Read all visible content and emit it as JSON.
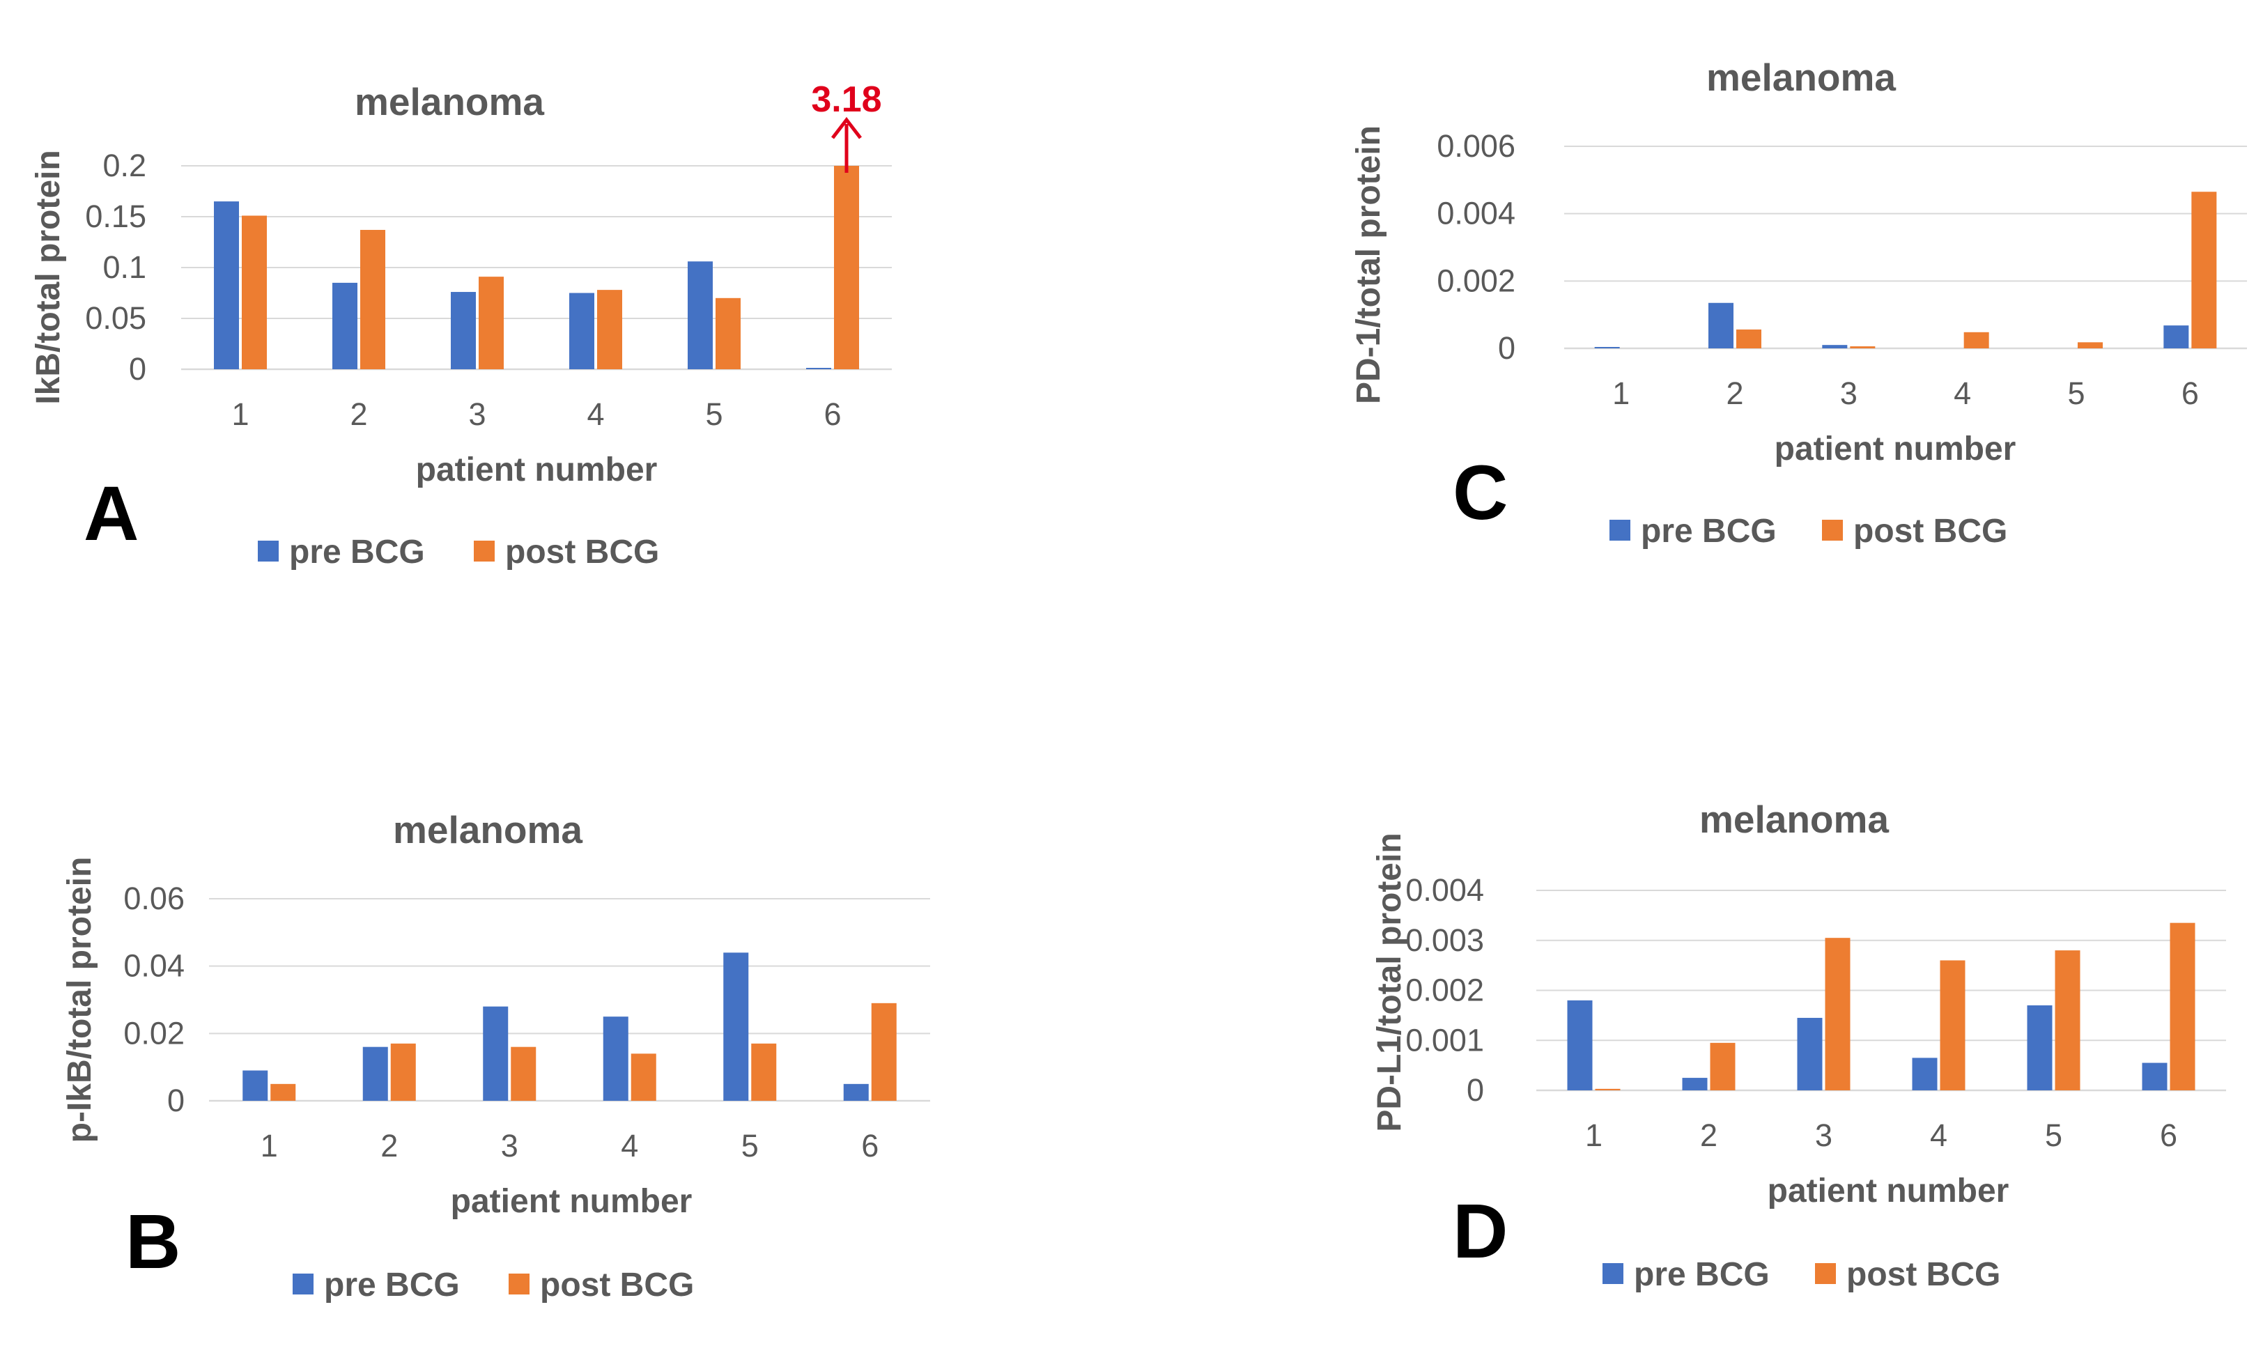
{
  "colors": {
    "pre": "#4472c4",
    "post": "#ed7d31",
    "annotation": "#e0001b"
  },
  "chart_data": [
    {
      "panel": "A",
      "type": "bar",
      "title": "melanoma",
      "xlabel": "patient number",
      "ylabel": "IkB/total protein",
      "categories": [
        "1",
        "2",
        "3",
        "4",
        "5",
        "6"
      ],
      "ylim": [
        0,
        0.2
      ],
      "yticks": [
        0,
        0.05,
        0.1,
        0.15,
        0.2
      ],
      "ytick_labels": [
        "0",
        "0.05",
        "0.1",
        "0.15",
        "0.2"
      ],
      "series": [
        {
          "name": "pre BCG",
          "values": [
            0.165,
            0.085,
            0.076,
            0.075,
            0.106,
            0.001
          ]
        },
        {
          "name": "post BCG",
          "values": [
            0.151,
            0.137,
            0.091,
            0.078,
            0.07,
            0.2
          ]
        }
      ],
      "annotation": {
        "text": "3.18",
        "category": "6",
        "series": "post BCG"
      },
      "legend": [
        "pre BCG",
        "post BCG"
      ],
      "legend_position": "bottom"
    },
    {
      "panel": "B",
      "type": "bar",
      "title": "melanoma",
      "xlabel": "patient number",
      "ylabel": "p-IkB/total protein",
      "categories": [
        "1",
        "2",
        "3",
        "4",
        "5",
        "6"
      ],
      "ylim": [
        0,
        0.06
      ],
      "yticks": [
        0,
        0.02,
        0.04,
        0.06
      ],
      "ytick_labels": [
        "0",
        "0.02",
        "0.04",
        "0.06"
      ],
      "series": [
        {
          "name": "pre BCG",
          "values": [
            0.009,
            0.016,
            0.028,
            0.025,
            0.044,
            0.005
          ]
        },
        {
          "name": "post BCG",
          "values": [
            0.005,
            0.017,
            0.016,
            0.014,
            0.017,
            0.029
          ]
        }
      ],
      "legend": [
        "pre BCG",
        "post BCG"
      ],
      "legend_position": "bottom"
    },
    {
      "panel": "C",
      "type": "bar",
      "title": "melanoma",
      "xlabel": "patient number",
      "ylabel": "PD-1/total protein",
      "categories": [
        "1",
        "2",
        "3",
        "4",
        "5",
        "6"
      ],
      "ylim": [
        0,
        0.006
      ],
      "yticks": [
        0,
        0.002,
        0.004,
        0.006
      ],
      "ytick_labels": [
        "0",
        "0.002",
        "0.004",
        "0.006"
      ],
      "series": [
        {
          "name": "pre BCG",
          "values": [
            4e-05,
            0.00135,
            0.0001,
            0.0,
            0.0,
            0.00068
          ]
        },
        {
          "name": "post BCG",
          "values": [
            0.0,
            0.00056,
            6e-05,
            0.00048,
            0.00018,
            0.00465
          ]
        }
      ],
      "legend": [
        "pre BCG",
        "post BCG"
      ],
      "legend_position": "bottom"
    },
    {
      "panel": "D",
      "type": "bar",
      "title": "melanoma",
      "xlabel": "patient number",
      "ylabel": "PD-L1/total protein",
      "categories": [
        "1",
        "2",
        "3",
        "4",
        "5",
        "6"
      ],
      "ylim": [
        0,
        0.004
      ],
      "yticks": [
        0,
        0.001,
        0.002,
        0.003,
        0.004
      ],
      "ytick_labels": [
        "0",
        "0.001",
        "0.002",
        "0.003",
        "0.004"
      ],
      "series": [
        {
          "name": "pre BCG",
          "values": [
            0.0018,
            0.00025,
            0.00145,
            0.00065,
            0.0017,
            0.00055
          ]
        },
        {
          "name": "post BCG",
          "values": [
            3e-05,
            0.00095,
            0.00305,
            0.0026,
            0.0028,
            0.00335
          ]
        }
      ],
      "legend": [
        "pre BCG",
        "post BCG"
      ],
      "legend_position": "bottom"
    }
  ]
}
